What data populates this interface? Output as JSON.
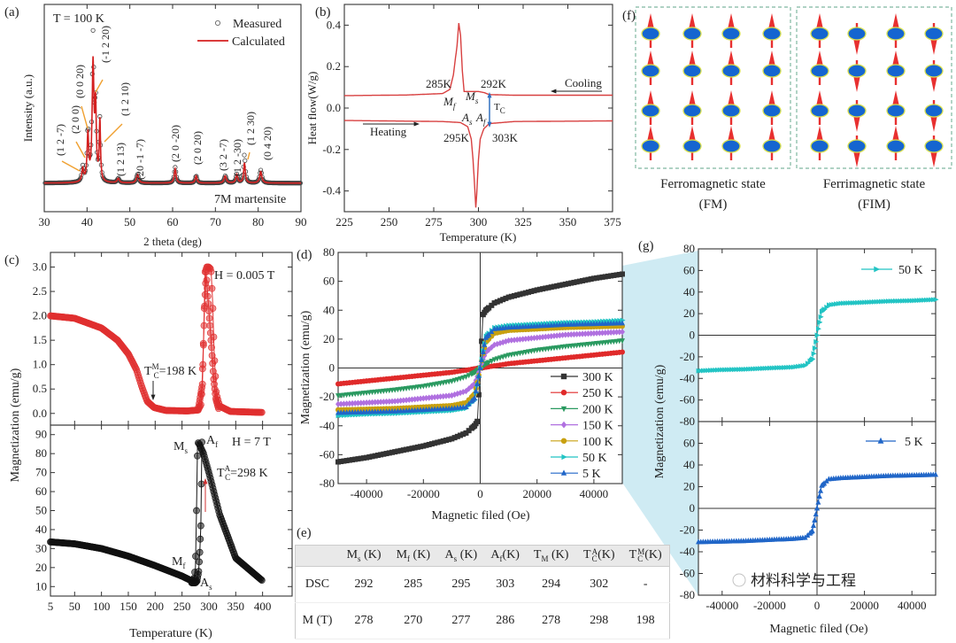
{
  "chart_data": [
    {
      "id": "a",
      "type": "line",
      "panel_label": "(a)",
      "xlabel": "2 theta (deg)",
      "ylabel": "Intensity (a.u.)",
      "xlim": [
        30,
        90
      ],
      "ylim": [
        -0.2,
        1.25
      ],
      "xticks": [
        "30",
        "40",
        "50",
        "60",
        "70",
        "80",
        "90"
      ],
      "yticks": [],
      "condition": "T = 100 K",
      "phase_label": "7M martensite",
      "phase_color": "#3a3aa8",
      "legend": [
        {
          "name": "Measured",
          "marker": "open-circle",
          "color": "#555555"
        },
        {
          "name": "Calculated",
          "marker": "line",
          "color": "#d42020"
        }
      ],
      "peaks": [
        {
          "two_theta": 39.0,
          "measured": 0.1,
          "calculated": 0.09,
          "fwhm": 0.5
        },
        {
          "two_theta": 40.2,
          "measured": 0.36,
          "calculated": 0.33,
          "fwhm": 0.45
        },
        {
          "two_theta": 41.4,
          "measured": 1.0,
          "calculated": 0.82,
          "fwhm": 0.5
        },
        {
          "two_theta": 42.0,
          "measured": 0.5,
          "calculated": 0.5,
          "fwhm": 0.4
        },
        {
          "two_theta": 43.0,
          "measured": 0.42,
          "calculated": 0.42,
          "fwhm": 0.35
        },
        {
          "two_theta": 47.3,
          "measured": 0.03,
          "calculated": 0.03,
          "fwhm": 0.6
        },
        {
          "two_theta": 51.8,
          "measured": 0.06,
          "calculated": 0.06,
          "fwhm": 0.6
        },
        {
          "two_theta": 60.6,
          "measured": 0.11,
          "calculated": 0.1,
          "fwhm": 0.5
        },
        {
          "two_theta": 65.5,
          "measured": 0.05,
          "calculated": 0.05,
          "fwhm": 0.5
        },
        {
          "two_theta": 72.3,
          "measured": 0.05,
          "calculated": 0.05,
          "fwhm": 0.6
        },
        {
          "two_theta": 75.0,
          "measured": 0.06,
          "calculated": 0.06,
          "fwhm": 0.5
        },
        {
          "two_theta": 76.8,
          "measured": 0.2,
          "calculated": 0.14,
          "fwhm": 0.45
        },
        {
          "two_theta": 80.6,
          "measured": 0.09,
          "calculated": 0.08,
          "fwhm": 0.6
        }
      ],
      "peak_labels": [
        "(1 2 -7)",
        "(2 0 0)",
        "(0 0 20)",
        "(-1 2 20)",
        "(1 2 10)",
        "(1 2 13)",
        "(20 -1 -7)",
        "(2 0 -20)",
        "(2 0 20)",
        "(3 2 -7)",
        "(1 2 -30)",
        "(1 2 30)",
        "(0 4 20)"
      ],
      "arrow_color": "#f0a030"
    },
    {
      "id": "b",
      "type": "line",
      "panel_label": "(b)",
      "xlabel": "Temperature (K)",
      "ylabel": "Heat flow(W/g)",
      "xlim": [
        225,
        375
      ],
      "ylim": [
        -0.5,
        0.5
      ],
      "xticks": [
        "225",
        "250",
        "275",
        "300",
        "325",
        "350",
        "375"
      ],
      "yticks": [
        "-0.4",
        "-0.2",
        "0.0",
        "0.2",
        "0.4"
      ],
      "line_color": "#d84040",
      "series": [
        {
          "x": [
            225,
            260,
            280,
            284,
            286,
            288,
            289,
            290,
            291,
            292,
            295,
            300,
            303,
            306,
            320,
            375
          ],
          "y": [
            0.06,
            0.063,
            0.07,
            0.09,
            0.16,
            0.3,
            0.41,
            0.35,
            0.18,
            0.08,
            0.08,
            0.08,
            0.075,
            0.065,
            0.062,
            0.062
          ]
        },
        {
          "x": [
            225,
            280,
            290,
            294,
            296,
            297,
            298,
            298.5,
            299,
            300,
            301,
            303,
            306,
            320,
            375
          ],
          "y": [
            -0.06,
            -0.065,
            -0.07,
            -0.09,
            -0.15,
            -0.25,
            -0.4,
            -0.48,
            -0.42,
            -0.25,
            -0.15,
            -0.1,
            -0.075,
            -0.065,
            -0.062
          ]
        }
      ],
      "annotations": {
        "t285": "285K",
        "t292": "292K",
        "t295": "295K",
        "t303": "303K",
        "cooling": "Cooling",
        "heating": "Heating",
        "Mf": {
          "main": "M",
          "sub": "f"
        },
        "Ms": {
          "main": "M",
          "sub": "s"
        },
        "As": {
          "main": "A",
          "sub": "s"
        },
        "Af": {
          "main": "A",
          "sub": "f"
        },
        "Tc": {
          "main": "T",
          "sub": "C"
        }
      },
      "tc_color": "#3070c0"
    },
    {
      "id": "c_top",
      "type": "scatter",
      "panel_label": "(c)",
      "ylabel": "Magnetization (emu/g)",
      "xlim": [
        5,
        455
      ],
      "ylim": [
        -0.24,
        3.3
      ],
      "xticks": [
        "5",
        "50",
        "100",
        "150",
        "200",
        "250",
        "300",
        "350",
        "400"
      ],
      "yticks": [
        "0.0",
        "0.5",
        "1.0",
        "1.5",
        "2.0",
        "2.5",
        "3.0"
      ],
      "color": "#e03030",
      "field": "H = 0.005 T",
      "tc": {
        "main": "T",
        "sub": "C",
        "sup": "M",
        "rest": "=198 K"
      },
      "series": [
        {
          "x": [
            5,
            50,
            100,
            130,
            150,
            165,
            175,
            185,
            198,
            220,
            260,
            280,
            286,
            290,
            293,
            296,
            300,
            304,
            307,
            310,
            314,
            320,
            340,
            400
          ],
          "y": [
            2.0,
            1.95,
            1.75,
            1.5,
            1.22,
            0.9,
            0.55,
            0.25,
            0.12,
            0.06,
            0.05,
            0.07,
            0.2,
            1.5,
            2.9,
            3.0,
            3.0,
            2.95,
            2.3,
            1.2,
            0.4,
            0.15,
            0.04,
            0.02
          ]
        },
        {
          "x": [
            280,
            288,
            292,
            295,
            298,
            301,
            305,
            309,
            313,
            318
          ],
          "y": [
            0.07,
            0.6,
            2.2,
            2.9,
            2.4,
            1.95,
            1.35,
            0.7,
            0.3,
            0.1
          ]
        }
      ]
    },
    {
      "id": "c_bottom",
      "type": "scatter",
      "xlabel": "Temperature (K)",
      "xlim": [
        5,
        455
      ],
      "ylim": [
        5,
        95
      ],
      "xticks": [
        "5",
        "50",
        "100",
        "150",
        "200",
        "250",
        "300",
        "350",
        "400"
      ],
      "yticks": [
        "10",
        "20",
        "30",
        "40",
        "50",
        "60",
        "70",
        "80",
        "90"
      ],
      "color": "#111111",
      "field": "H = 7 T",
      "labels": {
        "Ms": {
          "main": "M",
          "sub": "s"
        },
        "Af": {
          "main": "A",
          "sub": "f"
        },
        "Mf": {
          "main": "M",
          "sub": "f"
        },
        "As": {
          "main": "A",
          "sub": "s"
        }
      },
      "tc": {
        "main": "T",
        "sub": "C",
        "sup": "A",
        "rest": "=298 K"
      },
      "series": [
        {
          "x": [
            5,
            50,
            100,
            150,
            200,
            250,
            268,
            272,
            275,
            277,
            279,
            282,
            290,
            300,
            320,
            350,
            400
          ],
          "y": [
            33.5,
            32.5,
            30,
            26,
            21,
            15.5,
            13,
            14,
            20,
            50,
            86,
            85,
            80,
            70,
            48,
            25,
            13
          ]
        },
        {
          "x": [
            268,
            275,
            278,
            281,
            283,
            285,
            287
          ],
          "y": [
            12,
            12,
            13,
            18,
            28,
            42,
            86
          ]
        }
      ]
    },
    {
      "id": "d",
      "type": "scatter",
      "panel_label": "(d)",
      "xlabel": "Magnetic filed (Oe)",
      "ylabel": "Magnetization (emu/g)",
      "xlim": [
        -50000,
        50000
      ],
      "ylim": [
        -80,
        80
      ],
      "xticks": [
        "-40000",
        "-20000",
        "0",
        "20000",
        "40000"
      ],
      "yticks": [
        "-80",
        "-60",
        "-40",
        "-20",
        "0",
        "20",
        "40",
        "60",
        "80"
      ],
      "x": [
        -50000,
        -40000,
        -30000,
        -20000,
        -10000,
        -5000,
        -2000,
        -1000,
        0,
        1000,
        2000,
        5000,
        10000,
        20000,
        30000,
        40000,
        50000
      ],
      "series": [
        {
          "name": "300 K",
          "color": "#333333",
          "marker": "square",
          "values": [
            -65,
            -62,
            -58,
            -54,
            -49,
            -45,
            -40,
            -37,
            0,
            37,
            40,
            45,
            49,
            54,
            58,
            62,
            65
          ]
        },
        {
          "name": "250 K",
          "color": "#e02a2a",
          "marker": "circle",
          "values": [
            -11,
            -9,
            -7,
            -5,
            -3,
            -1.5,
            -0.6,
            -0.3,
            0,
            0.3,
            0.6,
            1.5,
            3,
            5,
            7,
            9,
            11
          ]
        },
        {
          "name": "200 K",
          "color": "#2a9a60",
          "marker": "triangle-down",
          "values": [
            -19,
            -17,
            -15,
            -12.5,
            -9,
            -6,
            -3,
            -1.5,
            0,
            1.5,
            3,
            6,
            9,
            12.5,
            15,
            17,
            19
          ]
        },
        {
          "name": "150 K",
          "color": "#b070e0",
          "marker": "diamond",
          "values": [
            -25,
            -24,
            -23,
            -21,
            -19,
            -16,
            -11,
            -6,
            0,
            6,
            11,
            16,
            19,
            21,
            23,
            24,
            25
          ]
        },
        {
          "name": "100 K",
          "color": "#c8a010",
          "marker": "pentagon",
          "values": [
            -29,
            -28.5,
            -28,
            -27,
            -26,
            -24,
            -18,
            -10,
            0,
            10,
            18,
            24,
            26,
            27,
            28,
            28.5,
            29
          ]
        },
        {
          "name": "50 K",
          "color": "#22c4c4",
          "marker": "triangle-right",
          "values": [
            -33,
            -32,
            -31.5,
            -30.5,
            -29.5,
            -28,
            -22,
            -12,
            0,
            12,
            22,
            28,
            29.5,
            30.5,
            31.5,
            32,
            33
          ]
        },
        {
          "name": "5 K",
          "color": "#2066c8",
          "marker": "triangle-up",
          "values": [
            -31,
            -30.5,
            -30,
            -29,
            -28,
            -27,
            -21,
            -11,
            0,
            11,
            21,
            27,
            28,
            29,
            30,
            30.5,
            31
          ]
        }
      ],
      "legend_position": "bottom-right"
    },
    {
      "id": "g_top",
      "type": "scatter",
      "panel_label": "(g)",
      "ylabel": "Magnetization (emu/g)",
      "xlim": [
        -50000,
        50000
      ],
      "ylim": [
        -80,
        80
      ],
      "xticks": [
        "-40000",
        "-20000",
        "0",
        "20000",
        "40000"
      ],
      "yticks": [
        "-80",
        "-60",
        "-40",
        "-20",
        "0",
        "20",
        "40",
        "60",
        "80"
      ],
      "x": [
        -50000,
        -40000,
        -30000,
        -20000,
        -10000,
        -5000,
        -2000,
        -1000,
        0,
        1000,
        2000,
        5000,
        10000,
        20000,
        30000,
        40000,
        50000
      ],
      "series": [
        {
          "name": "50 K",
          "color": "#22c4c4",
          "marker": "triangle-right",
          "values": [
            -33,
            -32,
            -31.5,
            -30.5,
            -29.5,
            -28,
            -22,
            -12,
            0,
            12,
            22,
            28,
            29.5,
            30.5,
            31.5,
            32,
            33
          ]
        }
      ],
      "legend_position": "top-right"
    },
    {
      "id": "g_bottom",
      "type": "scatter",
      "xlabel": "Magnetic filed (Oe)",
      "xlim": [
        -50000,
        50000
      ],
      "ylim": [
        -80,
        80
      ],
      "xticks": [
        "-40000",
        "-20000",
        "0",
        "20000",
        "40000"
      ],
      "yticks": [
        "-80",
        "-60",
        "-40",
        "-20",
        "0",
        "20",
        "40",
        "60"
      ],
      "x": [
        -50000,
        -40000,
        -30000,
        -20000,
        -10000,
        -5000,
        -2000,
        -1000,
        0,
        1000,
        2000,
        5000,
        10000,
        20000,
        30000,
        40000,
        50000
      ],
      "series": [
        {
          "name": "5 K",
          "color": "#2066c8",
          "marker": "triangle-up",
          "values": [
            -31,
            -30.5,
            -30,
            -29,
            -28,
            -27,
            -21,
            -11,
            0,
            11,
            21,
            27,
            28,
            29,
            30,
            30.5,
            31
          ]
        }
      ],
      "legend_position": "top-right"
    }
  ],
  "table_e": {
    "panel_label": "(e)",
    "headers": [
      {
        "main": "M",
        "sub": "s",
        "rest": " (K)"
      },
      {
        "main": "M",
        "sub": "f",
        "rest": " (K)"
      },
      {
        "main": "A",
        "sub": "s",
        "rest": " (K)"
      },
      {
        "main": "A",
        "sub": "f",
        "rest": "(K)"
      },
      {
        "main": "T",
        "sub": "M",
        "rest": " (K)"
      },
      {
        "main": "T",
        "sub": "C",
        "sup": "A",
        "rest": "(K)"
      },
      {
        "main": "T",
        "sub": "C",
        "sup": "M",
        "rest": "(K)"
      }
    ],
    "rows": [
      {
        "label": "DSC",
        "values": [
          "292",
          "285",
          "295",
          "303",
          "294",
          "302",
          "-"
        ]
      },
      {
        "label": "M (T)",
        "values": [
          "278",
          "270",
          "277",
          "286",
          "278",
          "298",
          "198"
        ]
      }
    ]
  },
  "diagram_f": {
    "panel_label": "(f)",
    "states": [
      {
        "caption": "Ferromagnetic state",
        "abbr": "(FM)",
        "pattern": [
          "up",
          "up",
          "up",
          "up"
        ]
      },
      {
        "caption": "Ferrimagnetic state",
        "abbr": "(FIM)",
        "pattern": [
          "up",
          "down",
          "up",
          "down"
        ]
      }
    ],
    "colors": {
      "atom": "#1565d0",
      "atom_outline": "#d8e050",
      "spin": "#e83030",
      "frame": "#7fb8a0"
    }
  },
  "zoom_shade_color": "#bfe4ef",
  "watermark": "材料科学与工程"
}
